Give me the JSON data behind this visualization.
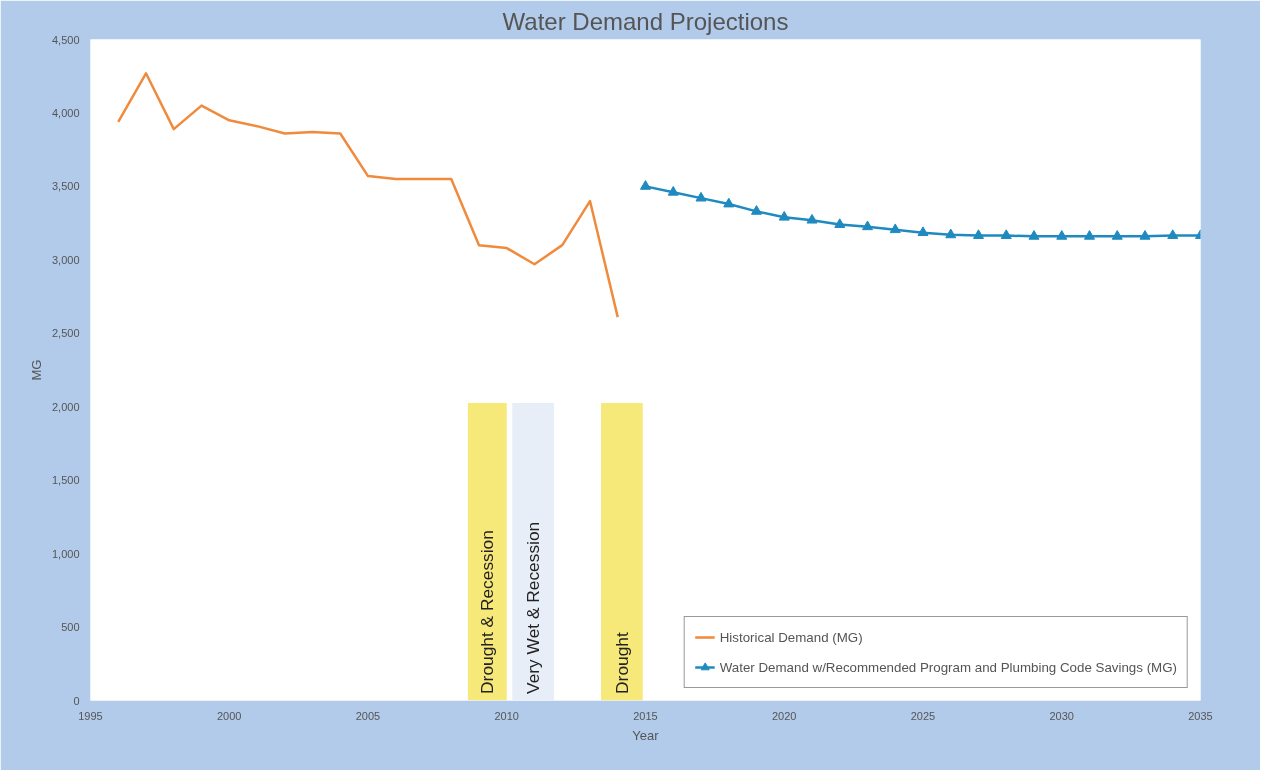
{
  "chart_data": {
    "type": "line",
    "title": "Water Demand Projections",
    "xlabel": "Year",
    "ylabel": "MG",
    "xlim": [
      1995,
      2035
    ],
    "xticks": [
      1995,
      2000,
      2005,
      2010,
      2015,
      2020,
      2025,
      2030,
      2035
    ],
    "ylim": [
      0,
      4500
    ],
    "yticks": [
      {
        "value": 0,
        "label": "0"
      },
      {
        "value": 500,
        "label": "500"
      },
      {
        "value": 1000,
        "label": "1,000"
      },
      {
        "value": 1500,
        "label": "1,500"
      },
      {
        "value": 2000,
        "label": "2,000"
      },
      {
        "value": 2500,
        "label": "2,500"
      },
      {
        "value": 3000,
        "label": "3,000"
      },
      {
        "value": 3500,
        "label": "3,500"
      },
      {
        "value": 4000,
        "label": "4,000"
      },
      {
        "value": 4500,
        "label": "4,500"
      }
    ],
    "grid": false,
    "legend": "bottom right",
    "series": [
      {
        "name": "Historical Demand (MG)",
        "color": "#f08a3c",
        "marker": "none",
        "x": [
          1996,
          1997,
          1998,
          1999,
          2000,
          2001,
          2002,
          2003,
          2004,
          2005,
          2006,
          2007,
          2008,
          2009,
          2010,
          2011,
          2012,
          2013,
          2014
        ],
        "values": [
          3940,
          4270,
          3890,
          4050,
          3950,
          3910,
          3860,
          3870,
          3860,
          3570,
          3550,
          3550,
          3550,
          3100,
          3080,
          2970,
          3100,
          3400,
          2610
        ]
      },
      {
        "name": "Water Demand w/Recommended Program and Plumbing Code Savings (MG)",
        "color": "#1f8ac0",
        "marker": "triangle",
        "x": [
          2015,
          2016,
          2017,
          2018,
          2019,
          2020,
          2021,
          2022,
          2023,
          2024,
          2025,
          2026,
          2027,
          2028,
          2029,
          2030,
          2031,
          2032,
          2033,
          2034,
          2035
        ],
        "values": [
          3500,
          3460,
          3420,
          3380,
          3330,
          3290,
          3270,
          3240,
          3225,
          3205,
          3185,
          3170,
          3165,
          3165,
          3160,
          3160,
          3160,
          3160,
          3160,
          3165,
          3165
        ]
      }
    ],
    "bands": [
      {
        "axis": "x",
        "from": 2008.6,
        "to": 2010.0,
        "label": "Drought & Recession",
        "color": "#f5e66a"
      },
      {
        "axis": "x",
        "from": 2010.2,
        "to": 2011.7,
        "label": "Very Wet & Recession",
        "color": "#e4ecf6"
      },
      {
        "axis": "x",
        "from": 2013.4,
        "to": 2014.9,
        "label": "Drought",
        "color": "#f5e66a"
      }
    ]
  }
}
